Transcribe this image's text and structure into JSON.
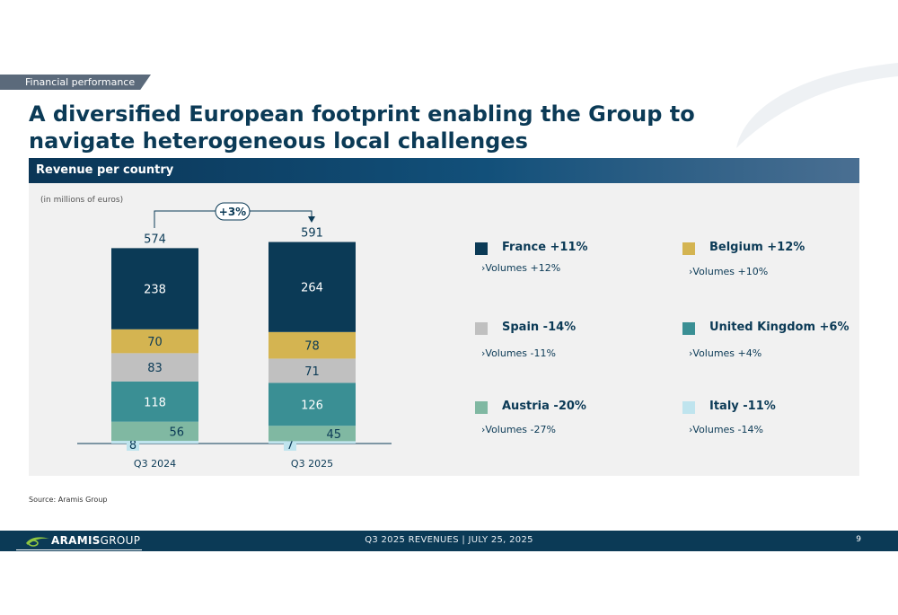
{
  "section_tag": "Financial performance",
  "title": "A diversified European footprint enabling the Group to navigate heterogeneous local challenges",
  "panel_header": "Revenue per country",
  "unit_note": "(in millions of euros)",
  "growth_label": "+3%",
  "source": "Source: Aramis Group",
  "footer": {
    "brand_bold": "ARAMIS",
    "brand_light": "GROUP",
    "center": "Q3 2025 REVENUES | JULY 25, 2025",
    "page": "9"
  },
  "colors": {
    "france": "#0b3a56",
    "belgium": "#d4b451",
    "spain": "#c0c0c0",
    "united_kingdom": "#3a8f94",
    "austria": "#80b8a2",
    "italy": "#bfe4ee",
    "panel": "#f1f1f1"
  },
  "legend": [
    {
      "key": "france",
      "label": "France +11%",
      "sub": "›Volumes +12%"
    },
    {
      "key": "belgium",
      "label": "Belgium +12%",
      "sub": "›Volumes +10%"
    },
    {
      "key": "spain",
      "label": "Spain -14%",
      "sub": "›Volumes -11%"
    },
    {
      "key": "united_kingdom",
      "label": "United Kingdom +6%",
      "sub": "›Volumes +4%"
    },
    {
      "key": "austria",
      "label": "Austria -20%",
      "sub": "›Volumes -27%"
    },
    {
      "key": "italy",
      "label": "Italy -11%",
      "sub": "›Volumes -14%"
    }
  ],
  "chart_data": {
    "type": "bar",
    "stacked": true,
    "categories": [
      "Q3 2024",
      "Q3 2025"
    ],
    "totals": [
      574,
      591
    ],
    "series": [
      {
        "name": "Italy",
        "key": "italy",
        "values": [
          8,
          7
        ]
      },
      {
        "name": "Austria",
        "key": "austria",
        "values": [
          56,
          45
        ]
      },
      {
        "name": "United Kingdom",
        "key": "united_kingdom",
        "values": [
          118,
          126
        ]
      },
      {
        "name": "Spain",
        "key": "spain",
        "values": [
          83,
          71
        ]
      },
      {
        "name": "Belgium",
        "key": "belgium",
        "values": [
          70,
          78
        ]
      },
      {
        "name": "France",
        "key": "france",
        "values": [
          238,
          264
        ]
      }
    ],
    "annotation": "+3%",
    "ylabel": "(in millions of euros)"
  }
}
